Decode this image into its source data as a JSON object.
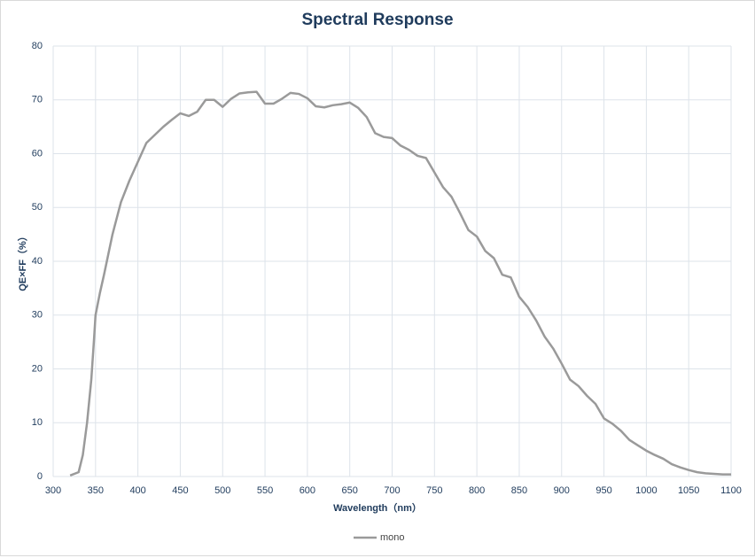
{
  "chart_data": {
    "type": "line",
    "title": "Spectral Response",
    "xlabel": "Wavelength（nm）",
    "ylabel": "QE×FF（%）",
    "x": [
      320,
      330,
      335,
      340,
      345,
      348,
      350,
      355,
      360,
      370,
      380,
      390,
      400,
      410,
      420,
      430,
      440,
      450,
      460,
      470,
      480,
      490,
      500,
      510,
      520,
      530,
      540,
      550,
      560,
      570,
      580,
      590,
      600,
      610,
      620,
      630,
      640,
      650,
      660,
      670,
      680,
      690,
      700,
      710,
      720,
      730,
      740,
      750,
      760,
      770,
      780,
      790,
      800,
      810,
      820,
      830,
      840,
      850,
      860,
      870,
      880,
      890,
      900,
      910,
      920,
      930,
      940,
      950,
      960,
      970,
      980,
      990,
      1000,
      1010,
      1020,
      1030,
      1040,
      1050,
      1060,
      1070,
      1080,
      1090,
      1100
    ],
    "series": [
      {
        "name": "mono",
        "color": "#9a9a9a",
        "values": [
          0.2,
          0.8,
          4,
          10,
          18,
          25,
          30,
          34,
          37.5,
          45,
          51,
          55,
          58.5,
          62,
          63.5,
          65,
          66.3,
          67.5,
          67,
          67.8,
          70,
          70,
          68.7,
          70.2,
          71.2,
          71.4,
          71.5,
          69.3,
          69.3,
          70.2,
          71.3,
          71.1,
          70.3,
          68.8,
          68.6,
          69,
          69.2,
          69.5,
          68.5,
          66.8,
          63.8,
          63.1,
          62.9,
          61.5,
          60.7,
          59.6,
          59.2,
          56.5,
          53.8,
          52,
          49,
          45.8,
          44.6,
          41.9,
          40.6,
          37.5,
          37,
          33.4,
          31.5,
          29,
          26,
          23.8,
          21,
          18,
          16.8,
          15,
          13.5,
          10.8,
          9.8,
          8.5,
          6.8,
          5.8,
          4.8,
          4,
          3.3,
          2.3,
          1.7,
          1.2,
          0.8,
          0.6,
          0.5,
          0.4,
          0.4
        ]
      }
    ],
    "xlim": [
      300,
      1100
    ],
    "xticks": [
      300,
      350,
      400,
      450,
      500,
      550,
      600,
      650,
      700,
      750,
      800,
      850,
      900,
      950,
      1000,
      1050,
      1100
    ],
    "ylim": [
      0,
      80
    ],
    "yticks": [
      0,
      10,
      20,
      30,
      40,
      50,
      60,
      70,
      80
    ],
    "grid": true,
    "legend": "bottom"
  }
}
